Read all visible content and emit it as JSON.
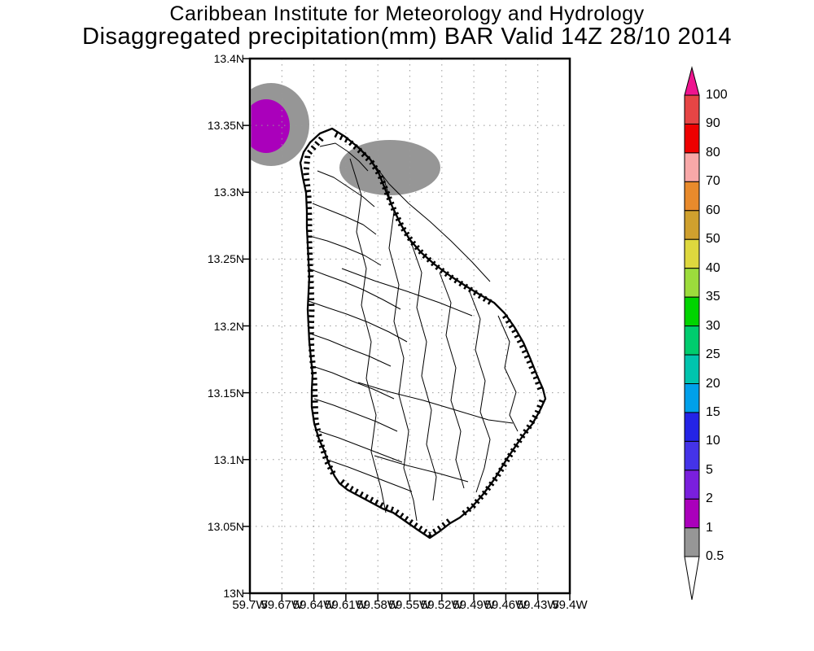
{
  "title": {
    "line1": "Caribbean Institute for Meteorology and Hydrology",
    "line2": "Disaggregated precipitation(mm) BAR Valid 14Z 28/10 2014",
    "color": "#000000"
  },
  "axes": {
    "lat_ticks": [
      "13.4N",
      "13.35N",
      "13.3N",
      "13.25N",
      "13.2N",
      "13.15N",
      "13.1N",
      "13.05N",
      "13N"
    ],
    "lon_ticks": [
      "59.7W",
      "59.67W",
      "59.64W",
      "59.61W",
      "59.58W",
      "59.55W",
      "59.52W",
      "59.49W",
      "59.46W",
      "59.43W",
      "59.4W"
    ],
    "grid_style": "dotted",
    "grid_color": "#999999",
    "frame_color": "#000000"
  },
  "colorbar": {
    "boundary_labels": [
      "100",
      "90",
      "80",
      "70",
      "60",
      "50",
      "40",
      "35",
      "30",
      "25",
      "20",
      "15",
      "10",
      "5",
      "2",
      "1",
      "0.5"
    ],
    "segment_colors_top_to_bottom": [
      "#e64545",
      "#ee0000",
      "#f8a8a8",
      "#e88a2c",
      "#cfa02e",
      "#ded83e",
      "#9cdc3c",
      "#00d400",
      "#00cc6e",
      "#00c4ae",
      "#00a0ea",
      "#2424e6",
      "#4433e8",
      "#7a1fdd",
      "#aa00bb",
      "#969696"
    ],
    "arrow_top_color": "#ef148f",
    "arrow_bottom_color": "#ffffff",
    "outline_color": "#000000"
  },
  "map": {
    "island": "Barbados",
    "coast_color": "#000000",
    "precip_cells": [
      {
        "name": "nw-offshore-cell-outer",
        "value_mm": "0.5-1",
        "color": "#969696"
      },
      {
        "name": "nw-offshore-cell-core",
        "value_mm": "1-2",
        "color": "#aa00bb"
      },
      {
        "name": "north-offshore-cell",
        "value_mm": "0.5-1",
        "color": "#969696"
      }
    ]
  },
  "chart_data": {
    "type": "heatmap",
    "variant": "geographic precipitation contour map (GrADS style)",
    "title": "Caribbean Institute for Meteorology and Hydrology",
    "subtitle": "Disaggregated precipitation(mm) BAR Valid 14Z 28/10 2014",
    "units": "mm",
    "region": "Barbados (BAR)",
    "valid_time": "14Z 28/10 2014",
    "x_axis": {
      "label": "longitude",
      "ticks": [
        "59.7W",
        "59.67W",
        "59.64W",
        "59.61W",
        "59.58W",
        "59.55W",
        "59.52W",
        "59.49W",
        "59.46W",
        "59.43W",
        "59.4W"
      ],
      "range": [
        "59.7W",
        "59.4W"
      ]
    },
    "y_axis": {
      "label": "latitude",
      "ticks": [
        "13.4N",
        "13.35N",
        "13.3N",
        "13.25N",
        "13.2N",
        "13.15N",
        "13.1N",
        "13.05N",
        "13N"
      ],
      "range": [
        "13N",
        "13.4N"
      ]
    },
    "grid": "dotted gray, 0.03 deg lon x 0.05 deg lat",
    "color_scale": {
      "levels_mm": [
        0.5,
        1,
        2,
        5,
        10,
        15,
        20,
        25,
        30,
        35,
        40,
        50,
        60,
        70,
        80,
        90,
        100
      ],
      "colors_low_to_high": [
        "#969696",
        "#aa00bb",
        "#7a1fdd",
        "#4433e8",
        "#2424e6",
        "#00a0ea",
        "#00c4ae",
        "#00cc6e",
        "#00d400",
        "#9cdc3c",
        "#ded83e",
        "#cfa02e",
        "#e88a2c",
        "#f8a8a8",
        "#ee0000",
        "#e64545"
      ],
      "above_max_color": "#ef148f",
      "below_min_color": "#ffffff"
    },
    "data_points": [
      {
        "feature": "precipitation cell core (northwest, offshore)",
        "lat": "13.35N",
        "lon": "59.69W",
        "value_mm": "1-2"
      },
      {
        "feature": "precipitation cell outer ring (northwest, offshore)",
        "lat": "13.35N",
        "lon": "59.68W",
        "value_mm": "0.5-1"
      },
      {
        "feature": "precipitation cell (north of island)",
        "lat": "13.32N",
        "lon": "59.56W",
        "value_mm": "0.5-1"
      },
      {
        "feature": "rest of domain / island interior",
        "value_mm": "< 0.5"
      }
    ],
    "legend_position": "right vertical colorbar with end arrows"
  }
}
